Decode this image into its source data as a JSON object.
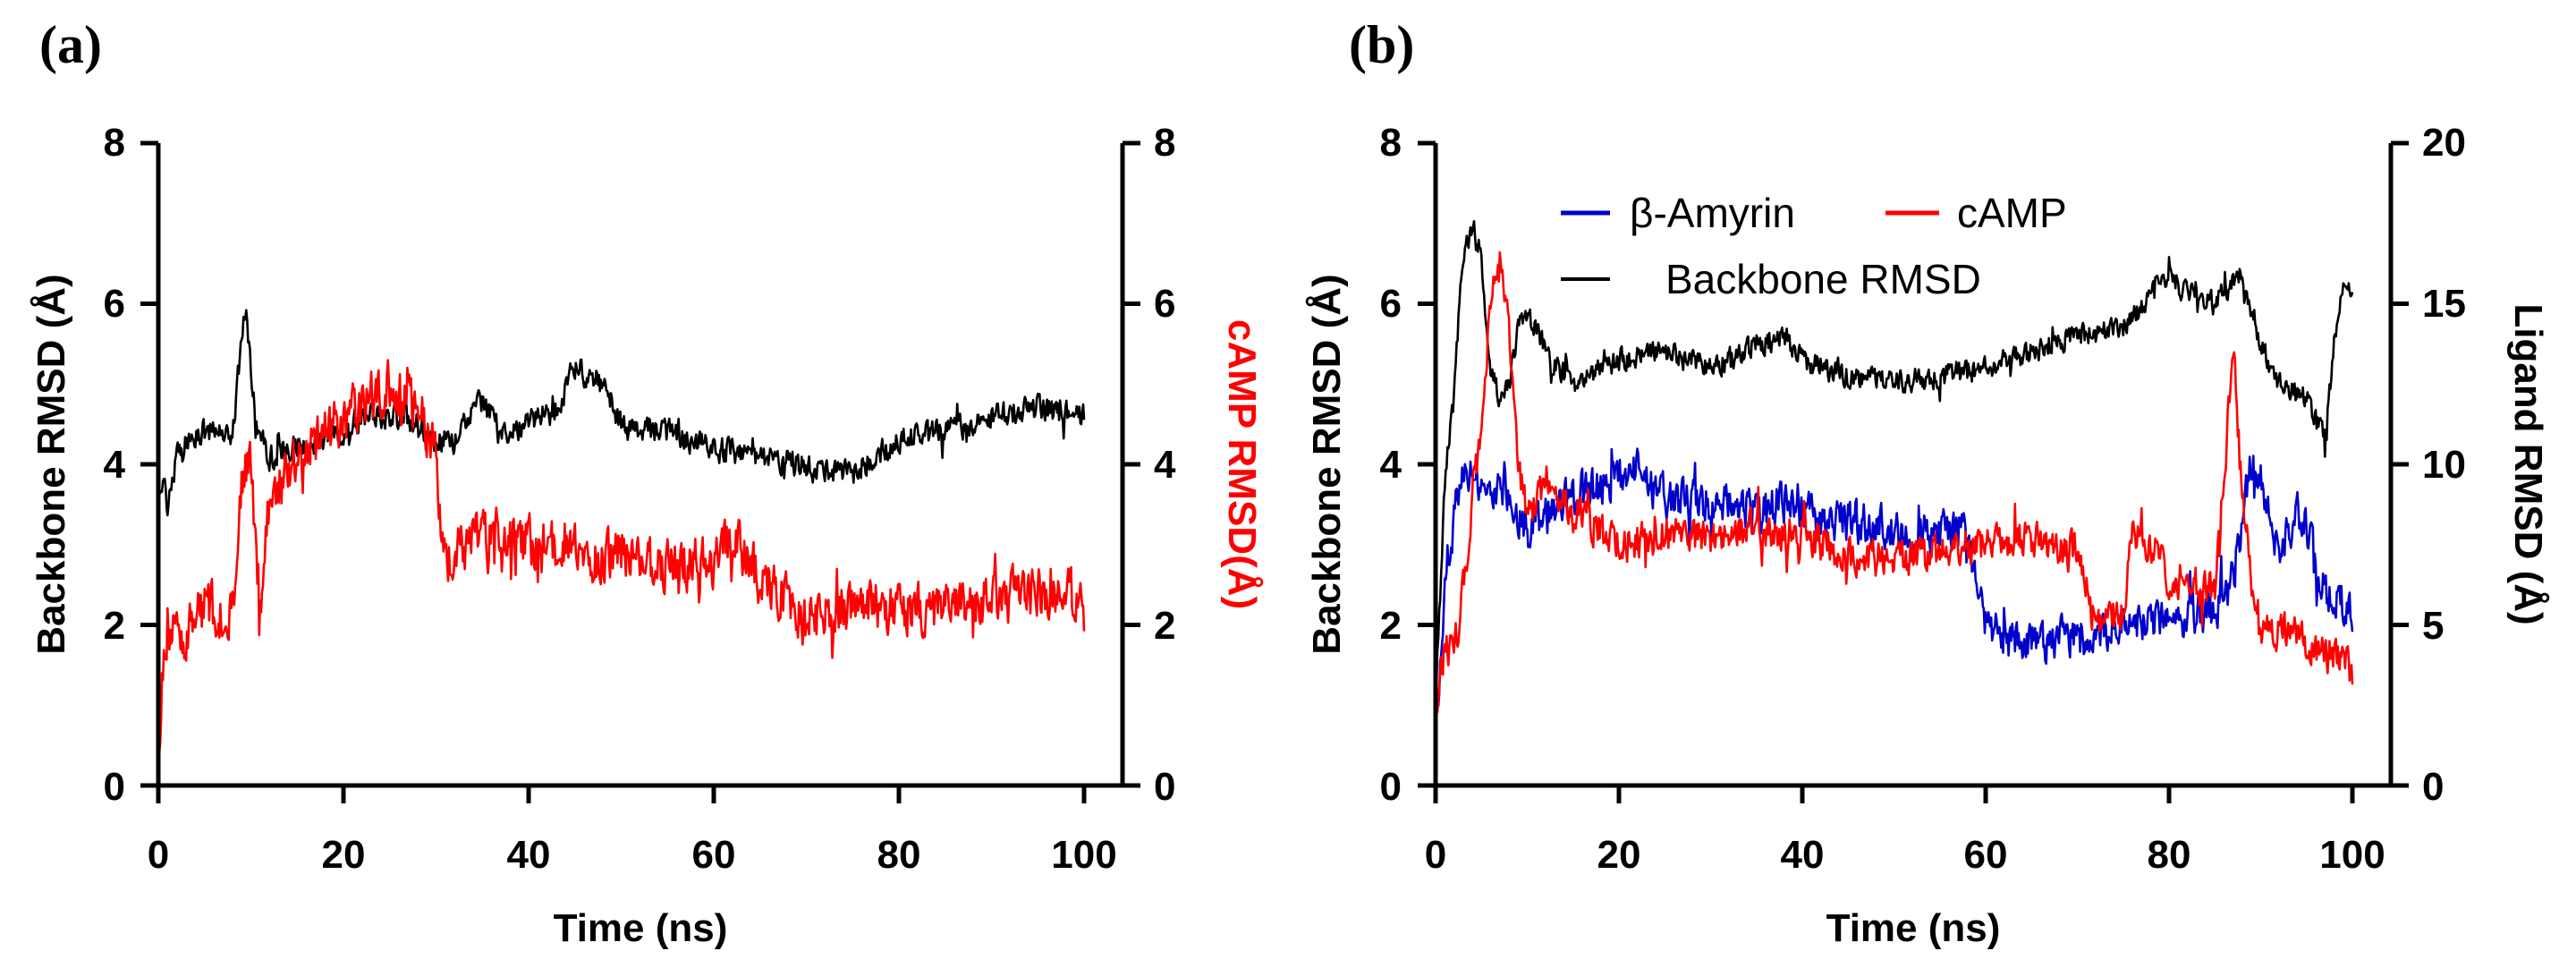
{
  "chart_data": [
    {
      "panel_label": "(a)",
      "type": "line",
      "xlabel": "Time (ns)",
      "ylabel_left": "Backbone RMSD (Å)",
      "ylabel_right": "cAMP RMSD(Å)",
      "xlim": [
        0,
        100
      ],
      "ylim_left": [
        0,
        8
      ],
      "ylim_right": [
        0,
        8
      ],
      "xticks": [
        "0",
        "20",
        "40",
        "60",
        "80",
        "100"
      ],
      "yticks_left": [
        "0",
        "2",
        "4",
        "6",
        "8"
      ],
      "yticks_right": [
        "0",
        "2",
        "4",
        "6",
        "8"
      ],
      "legend": [],
      "series": [
        {
          "name": "Backbone RMSD",
          "color": "#000000",
          "axis": "left",
          "noise": 0.22,
          "x": [
            0,
            0.5,
            1,
            2,
            3,
            5,
            8,
            9,
            9.5,
            10.5,
            12,
            15,
            20,
            22,
            25,
            28,
            30,
            32,
            35,
            37,
            40,
            43,
            45,
            48,
            50,
            55,
            60,
            65,
            70,
            75,
            80,
            85,
            90,
            95,
            100
          ],
          "y": [
            3.4,
            3.9,
            3.5,
            4.1,
            4.3,
            4.4,
            4.4,
            5.5,
            5.9,
            4.6,
            4.1,
            4.2,
            4.4,
            4.6,
            4.6,
            4.5,
            4.3,
            4.3,
            4.8,
            4.4,
            4.5,
            4.7,
            5.2,
            5.0,
            4.5,
            4.4,
            4.2,
            4.1,
            4.0,
            3.9,
            4.3,
            4.4,
            4.6,
            4.7,
            4.6
          ]
        },
        {
          "name": "cAMP",
          "color": "#ff0000",
          "axis": "right",
          "noise": 0.45,
          "x": [
            0,
            0.5,
            1,
            2,
            5,
            8,
            9,
            10,
            11,
            12,
            15,
            20,
            25,
            28,
            30,
            31,
            35,
            40,
            45,
            48,
            50,
            55,
            60,
            62,
            65,
            68,
            70,
            75,
            80,
            85,
            90,
            95,
            100
          ],
          "y": [
            0.3,
            1.5,
            2.0,
            1.8,
            2.2,
            2.1,
            3.8,
            4.0,
            2.2,
            3.6,
            4.1,
            4.6,
            5.0,
            4.7,
            4.1,
            2.7,
            3.2,
            3.0,
            2.9,
            2.8,
            2.9,
            2.7,
            2.8,
            3.1,
            2.6,
            2.3,
            2.0,
            2.3,
            2.2,
            2.2,
            2.3,
            2.4,
            2.3
          ]
        }
      ]
    },
    {
      "panel_label": "(b)",
      "type": "line",
      "xlabel": "Time (ns)",
      "ylabel_left": "Backbone RMSD (Å)",
      "ylabel_right": "Ligand RMSD (Å)",
      "xlim": [
        0,
        100
      ],
      "ylim_left": [
        0,
        8
      ],
      "ylim_right": [
        0,
        20
      ],
      "xticks": [
        "0",
        "20",
        "40",
        "60",
        "80",
        "100"
      ],
      "yticks_left": [
        "0",
        "2",
        "4",
        "6",
        "8"
      ],
      "yticks_right": [
        "0",
        "5",
        "10",
        "15",
        "20"
      ],
      "legend": [
        {
          "label": "β-Amyrin",
          "color": "#0000cc"
        },
        {
          "label": "cAMP",
          "color": "#ff0000"
        },
        {
          "label": "Backbone RMSD",
          "color": "#000000"
        }
      ],
      "series": [
        {
          "name": "Backbone RMSD",
          "color": "#000000",
          "axis": "left",
          "noise": 0.2,
          "x": [
            0,
            1,
            2,
            3,
            4,
            5,
            6,
            7,
            8,
            9,
            10,
            12,
            15,
            20,
            25,
            30,
            35,
            38,
            40,
            45,
            50,
            55,
            60,
            65,
            70,
            75,
            78,
            80,
            85,
            88,
            90,
            92,
            95,
            97,
            98,
            99,
            100
          ],
          "y": [
            1.0,
            3.8,
            5.0,
            6.6,
            7.0,
            6.5,
            5.2,
            4.8,
            5.0,
            5.7,
            5.9,
            5.4,
            5.0,
            5.3,
            5.4,
            5.2,
            5.5,
            5.6,
            5.3,
            5.1,
            5.0,
            5.1,
            5.2,
            5.4,
            5.6,
            5.7,
            6.1,
            6.3,
            6.0,
            6.4,
            5.5,
            5.0,
            4.8,
            4.3,
            5.5,
            6.3,
            6.0
          ]
        },
        {
          "name": "β-Amyrin",
          "color": "#0000cc",
          "axis": "right",
          "noise": 0.9,
          "x": [
            0,
            0.5,
            1,
            2,
            3,
            5,
            8,
            10,
            15,
            20,
            22,
            25,
            30,
            35,
            38,
            40,
            45,
            50,
            55,
            58,
            60,
            62,
            65,
            70,
            75,
            80,
            85,
            87,
            89,
            90,
            92,
            94,
            95,
            97,
            100
          ],
          "y": [
            2.0,
            3.0,
            6.0,
            9.0,
            10.0,
            9.5,
            9.0,
            8.0,
            9.0,
            9.5,
            9.8,
            9.0,
            8.8,
            8.5,
            8.8,
            8.5,
            8.2,
            8.0,
            7.8,
            8.0,
            5.0,
            4.5,
            4.4,
            4.6,
            5.0,
            5.2,
            5.5,
            6.5,
            10.0,
            9.5,
            7.0,
            8.5,
            8.0,
            6.0,
            5.5
          ]
        },
        {
          "name": "cAMP",
          "color": "#ff0000",
          "axis": "right",
          "noise": 0.8,
          "x": [
            0,
            0.5,
            1,
            2,
            3,
            4,
            5,
            6,
            7,
            8,
            9,
            10,
            12,
            15,
            20,
            25,
            30,
            35,
            40,
            45,
            50,
            55,
            60,
            65,
            70,
            72,
            75,
            76,
            78,
            80,
            85,
            87,
            88,
            89,
            90,
            95,
            98,
            100
          ],
          "y": [
            2.5,
            3.5,
            4.5,
            4.0,
            6.0,
            9.0,
            11.0,
            15.0,
            16.5,
            14.0,
            10.0,
            8.5,
            9.5,
            8.5,
            7.5,
            7.8,
            7.6,
            8.0,
            7.8,
            7.2,
            7.0,
            7.3,
            7.5,
            7.8,
            7.2,
            5.0,
            5.5,
            8.0,
            7.5,
            6.5,
            6.0,
            13.5,
            9.0,
            6.5,
            5.0,
            4.5,
            4.0,
            3.5
          ]
        }
      ]
    }
  ]
}
